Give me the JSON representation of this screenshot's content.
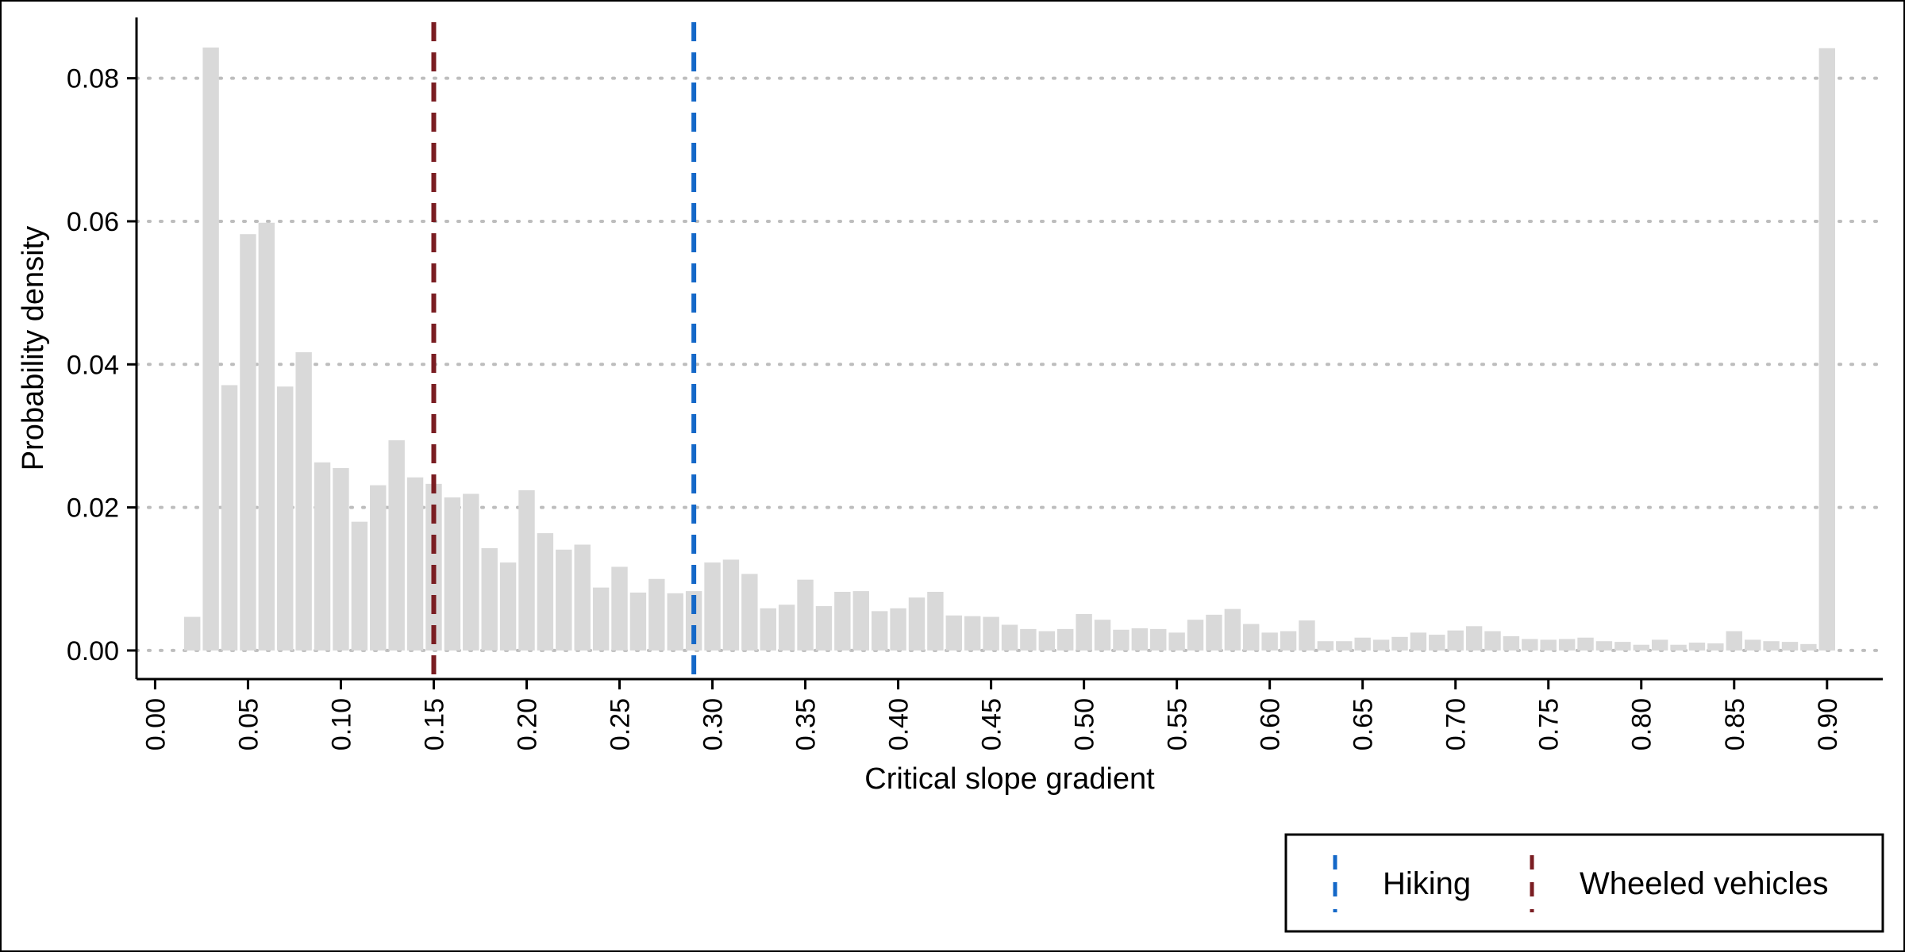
{
  "chart_data": {
    "type": "bar",
    "title": "",
    "xlabel": "Critical slope gradient",
    "ylabel": "Probability density",
    "xlim": [
      -0.01,
      0.93
    ],
    "ylim": [
      -0.004,
      0.0885
    ],
    "bin_width": 0.01,
    "x": [
      0.02,
      0.03,
      0.04,
      0.05,
      0.06,
      0.07,
      0.08,
      0.09,
      0.1,
      0.11,
      0.12,
      0.13,
      0.14,
      0.15,
      0.16,
      0.17,
      0.18,
      0.19,
      0.2,
      0.21,
      0.22,
      0.23,
      0.24,
      0.25,
      0.26,
      0.27,
      0.28,
      0.29,
      0.3,
      0.31,
      0.32,
      0.33,
      0.34,
      0.35,
      0.36,
      0.37,
      0.38,
      0.39,
      0.4,
      0.41,
      0.42,
      0.43,
      0.44,
      0.45,
      0.46,
      0.47,
      0.48,
      0.49,
      0.5,
      0.51,
      0.52,
      0.53,
      0.54,
      0.55,
      0.56,
      0.57,
      0.58,
      0.59,
      0.6,
      0.61,
      0.62,
      0.63,
      0.64,
      0.65,
      0.66,
      0.67,
      0.68,
      0.69,
      0.7,
      0.71,
      0.72,
      0.73,
      0.74,
      0.75,
      0.76,
      0.77,
      0.78,
      0.79,
      0.8,
      0.81,
      0.82,
      0.83,
      0.84,
      0.85,
      0.86,
      0.87,
      0.88,
      0.89,
      0.9
    ],
    "values": [
      0.0047,
      0.0843,
      0.0371,
      0.0582,
      0.0598,
      0.0369,
      0.0417,
      0.0263,
      0.0255,
      0.018,
      0.0231,
      0.0294,
      0.0242,
      0.0233,
      0.0214,
      0.0219,
      0.0143,
      0.0123,
      0.0224,
      0.0164,
      0.0141,
      0.0148,
      0.0088,
      0.0117,
      0.0081,
      0.01,
      0.008,
      0.0083,
      0.0123,
      0.0127,
      0.0107,
      0.0059,
      0.0064,
      0.0099,
      0.0062,
      0.0082,
      0.0083,
      0.0055,
      0.0059,
      0.0074,
      0.0082,
      0.0049,
      0.0048,
      0.0047,
      0.0036,
      0.003,
      0.0027,
      0.003,
      0.0051,
      0.0043,
      0.0029,
      0.0031,
      0.003,
      0.0025,
      0.0043,
      0.005,
      0.0058,
      0.0037,
      0.0025,
      0.0027,
      0.0042,
      0.0013,
      0.0013,
      0.0018,
      0.0015,
      0.0019,
      0.0025,
      0.0022,
      0.0028,
      0.0034,
      0.0027,
      0.002,
      0.0016,
      0.0015,
      0.0016,
      0.0018,
      0.0013,
      0.0012,
      0.0008,
      0.0015,
      0.0008,
      0.0011,
      0.001,
      0.0027,
      0.0015,
      0.0013,
      0.0012,
      0.0009,
      0.0842
    ],
    "x_ticks": [
      "0.00",
      "0.05",
      "0.10",
      "0.15",
      "0.20",
      "0.25",
      "0.30",
      "0.35",
      "0.40",
      "0.45",
      "0.50",
      "0.55",
      "0.60",
      "0.65",
      "0.70",
      "0.75",
      "0.80",
      "0.85",
      "0.90"
    ],
    "y_ticks": [
      "0.00",
      "0.02",
      "0.04",
      "0.06",
      "0.08"
    ],
    "grid": "horizontal-dotted",
    "bar_color": "#d9d9d9",
    "reference_lines": [
      {
        "name": "Hiking",
        "x": 0.29,
        "color": "#1468c8",
        "style": "dashed"
      },
      {
        "name": "Wheeled vehicles",
        "x": 0.15,
        "color": "#7a1d22",
        "style": "dashed"
      }
    ],
    "legend": {
      "position": "bottom-right",
      "entries": [
        "Hiking",
        "Wheeled vehicles"
      ]
    }
  }
}
